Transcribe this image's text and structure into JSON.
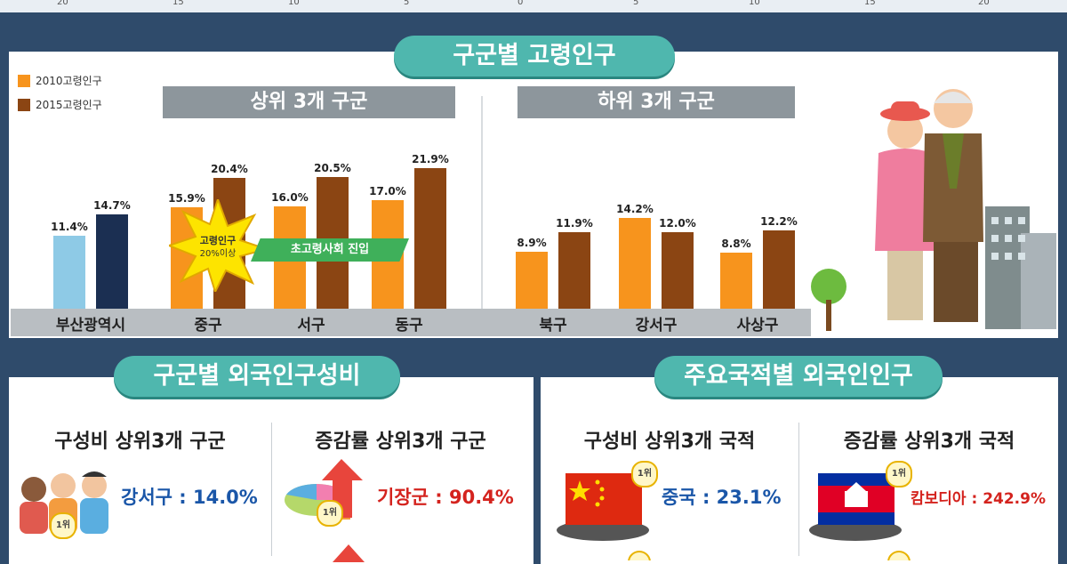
{
  "top_axis": {
    "ticks": [
      "20",
      "15",
      "10",
      "5",
      "0",
      "5",
      "10",
      "15",
      "20"
    ]
  },
  "sections": {
    "elderly": {
      "title": "구군별 고령인구",
      "top_header": "상위 3개 구군",
      "bottom_header": "하위 3개 구군"
    },
    "foreign_share": {
      "title": "구군별 외국인구성비",
      "left_title": "구성비 상위3개 구군",
      "left_stat": "강서구 : 14.0%",
      "right_title": "증감률 상위3개 구군",
      "right_stat": "기장군 : 90.4%"
    },
    "nationality": {
      "title": "주요국적별 외국인인구",
      "left_title": "구성비 상위3개 국적",
      "left_stat": "중국 : 23.1%",
      "right_title": "증감률 상위3개 국적",
      "right_stat": "캄보디아 : 242.9%"
    }
  },
  "badge_label": "1위",
  "starburst": {
    "line1": "고령인구",
    "line2": "20%이상"
  },
  "ribbon": "초고령사회 진입",
  "colors": {
    "y2010": "#f7941d",
    "y2015": "#8b4513",
    "busan2010": "#8ecae6",
    "busan2015": "#1b2f52",
    "accent": "#4fb7ae"
  },
  "chart_data": {
    "type": "bar",
    "categories": [
      "부산광역시",
      "중구",
      "서구",
      "동구",
      "북구",
      "강서구",
      "사상구"
    ],
    "series": [
      {
        "name": "2010고령인구",
        "values": [
          11.4,
          15.9,
          16.0,
          17.0,
          8.9,
          14.2,
          8.8
        ],
        "labels": [
          "11.4%",
          "15.9%",
          "16.0%",
          "17.0%",
          "8.9%",
          "14.2%",
          "8.8%"
        ]
      },
      {
        "name": "2015고령인구",
        "values": [
          14.7,
          20.4,
          20.5,
          21.9,
          11.9,
          12.0,
          12.2
        ],
        "labels": [
          "14.7%",
          "20.4%",
          "20.5%",
          "21.9%",
          "11.9%",
          "12.0%",
          "12.2%"
        ]
      }
    ],
    "ylim": [
      0,
      25
    ],
    "legend": "top-left"
  }
}
